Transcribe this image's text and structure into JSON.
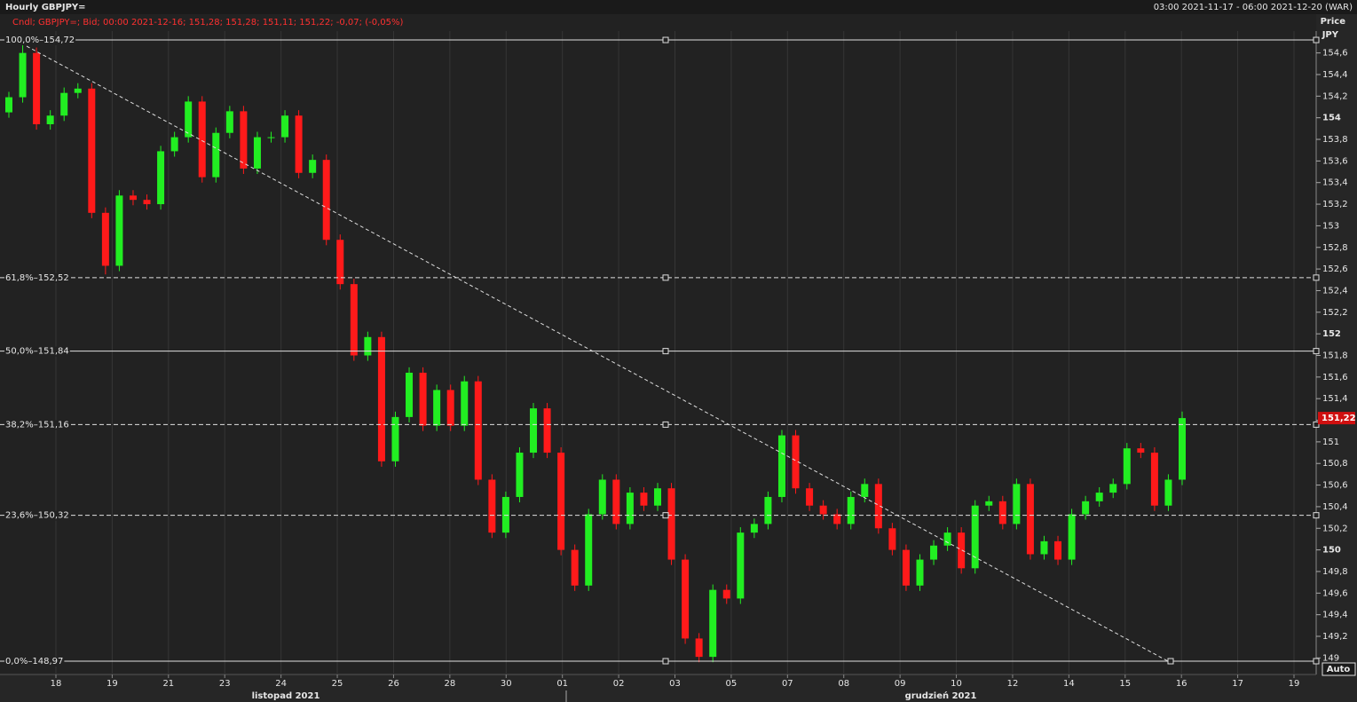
{
  "chart_data": {
    "type": "candlestick",
    "title": "Hourly GBPJPY=",
    "date_range": "03:00 2021-11-17 - 06:00 2021-12-20 (WAR)",
    "legend": "Cndl; GBPJPY=; Bid; 00:00 2021-12-16; 151,28; 151,28; 151,11; 151,22; -0,07; (-0,05%)",
    "axis_title": "Price",
    "axis_unit": "JPY",
    "button": "Auto",
    "categories": [
      "18",
      "19",
      "21",
      "23",
      "24",
      "25",
      "26",
      "28",
      "30",
      "01",
      "02",
      "03",
      "05",
      "07",
      "08",
      "09",
      "10",
      "12",
      "14",
      "15",
      "16",
      "17",
      "19"
    ],
    "month_labels": [
      "listopad 2021",
      "grudzień 2021"
    ],
    "up_color": "#22ee22",
    "down_color": "#ff1a1a",
    "ylim": [
      148.85,
      154.8
    ],
    "yticks": [
      149,
      {
        "value": 149.2,
        "label": "149,2"
      },
      {
        "value": 149.4,
        "label": "149,4"
      },
      {
        "value": 149.6,
        "label": "149,6"
      },
      {
        "value": 149.8,
        "label": "149,8"
      },
      150,
      {
        "value": 150.2,
        "label": "150,2"
      },
      {
        "value": 150.4,
        "label": "150,4"
      },
      {
        "value": 150.6,
        "label": "150,6"
      },
      {
        "value": 150.8,
        "label": "150,8"
      },
      151,
      {
        "value": 151.2,
        "label": "151,2"
      },
      {
        "value": 151.4,
        "label": "151,4"
      },
      {
        "value": 151.6,
        "label": "151,6"
      },
      {
        "value": 151.8,
        "label": "151,8"
      },
      152,
      {
        "value": 152.2,
        "label": "152,2"
      },
      {
        "value": 152.4,
        "label": "152,4"
      },
      {
        "value": 152.6,
        "label": "152,6"
      },
      {
        "value": 152.8,
        "label": "152,8"
      },
      153,
      {
        "value": 153.2,
        "label": "153,2"
      },
      {
        "value": 153.4,
        "label": "153,4"
      },
      {
        "value": 153.6,
        "label": "153,6"
      },
      {
        "value": 153.8,
        "label": "153,8"
      },
      154,
      {
        "value": 154.2,
        "label": "154,2"
      },
      {
        "value": 154.4,
        "label": "154,4"
      },
      {
        "value": 154.6,
        "label": "154,6"
      }
    ],
    "fib_levels": [
      {
        "value": 154.72,
        "label": "100,0%–154,72",
        "style": "solid"
      },
      {
        "value": 152.52,
        "label": "61,8%–152,52",
        "style": "dashed"
      },
      {
        "value": 151.84,
        "label": "50,0%–151,84",
        "style": "solid"
      },
      {
        "value": 151.16,
        "label": "38,2%–151,16",
        "style": "dashed"
      },
      {
        "value": 150.32,
        "label": "23,6%–150,32",
        "style": "dashed"
      },
      {
        "value": 148.97,
        "label": "0,0%–148,97",
        "style": "solid"
      }
    ],
    "last_price": 151.22,
    "last_price_label": "151,22",
    "candles": {
      "open": [
        154.05,
        154.19,
        154.6,
        153.94,
        154.02,
        154.23,
        154.27,
        153.12,
        152.63,
        153.28,
        153.24,
        153.2,
        153.69,
        153.82,
        154.15,
        153.45,
        153.86,
        154.06,
        153.53,
        153.82,
        153.82,
        154.02,
        153.49,
        153.61,
        152.87,
        152.46,
        151.8,
        151.97,
        150.82,
        151.23,
        151.64,
        151.15,
        151.48,
        151.15,
        151.56,
        150.65,
        150.16,
        150.49,
        150.9,
        151.31,
        150.9,
        150.0,
        149.67,
        150.33,
        150.65,
        150.24,
        150.53,
        150.41,
        150.57,
        149.91,
        149.18,
        149.01,
        149.63,
        149.55,
        150.16,
        150.24,
        150.49,
        151.06,
        150.57,
        150.41,
        150.33,
        150.24,
        150.49,
        150.61,
        150.2,
        150.0,
        149.67,
        149.91,
        150.04,
        150.16,
        149.83,
        150.41,
        150.45,
        150.24,
        150.61,
        149.96,
        150.08,
        149.91,
        150.33,
        150.45,
        150.53,
        150.61,
        150.94,
        150.9,
        150.41,
        150.65
      ],
      "high": [
        154.24,
        154.72,
        154.65,
        154.07,
        154.28,
        154.32,
        154.32,
        153.17,
        153.33,
        153.33,
        153.29,
        153.74,
        153.87,
        154.2,
        154.2,
        153.91,
        154.11,
        154.11,
        153.87,
        153.87,
        154.07,
        154.07,
        153.66,
        153.66,
        152.92,
        152.51,
        152.02,
        152.02,
        151.28,
        151.69,
        151.69,
        151.53,
        151.53,
        151.61,
        151.61,
        150.7,
        150.54,
        150.95,
        151.36,
        151.36,
        150.95,
        150.05,
        150.38,
        150.7,
        150.7,
        150.58,
        150.58,
        150.62,
        150.62,
        149.96,
        149.23,
        149.68,
        149.68,
        150.21,
        150.29,
        150.54,
        151.11,
        151.11,
        150.62,
        150.46,
        150.38,
        150.54,
        150.66,
        150.66,
        150.25,
        150.05,
        149.96,
        150.09,
        150.21,
        150.21,
        150.46,
        150.5,
        150.5,
        150.66,
        150.66,
        150.13,
        150.13,
        150.38,
        150.5,
        150.58,
        150.66,
        150.99,
        150.99,
        150.95,
        150.7,
        151.28
      ],
      "low": [
        154.0,
        154.14,
        153.89,
        153.89,
        153.97,
        154.18,
        153.07,
        152.55,
        152.58,
        153.19,
        153.15,
        153.15,
        153.64,
        153.77,
        153.4,
        153.4,
        153.81,
        153.48,
        153.48,
        153.77,
        153.77,
        153.44,
        153.44,
        152.82,
        152.41,
        151.75,
        151.75,
        150.77,
        150.77,
        151.18,
        151.1,
        151.1,
        151.1,
        151.1,
        150.6,
        150.11,
        150.11,
        150.44,
        150.85,
        150.85,
        149.95,
        149.62,
        149.62,
        150.28,
        150.19,
        150.19,
        150.36,
        150.36,
        149.86,
        149.13,
        148.96,
        148.96,
        149.5,
        149.5,
        150.11,
        150.19,
        150.44,
        150.52,
        150.36,
        150.28,
        150.19,
        150.19,
        150.44,
        150.15,
        149.95,
        149.62,
        149.62,
        149.86,
        149.99,
        149.78,
        149.78,
        150.36,
        150.19,
        150.19,
        149.91,
        149.91,
        149.86,
        149.86,
        150.28,
        150.4,
        150.48,
        150.56,
        150.85,
        150.36,
        150.36,
        150.6
      ],
      "close": [
        154.19,
        154.6,
        153.94,
        154.02,
        154.23,
        154.27,
        153.12,
        152.63,
        153.28,
        153.24,
        153.2,
        153.69,
        153.82,
        154.15,
        153.45,
        153.86,
        154.06,
        153.53,
        153.82,
        153.82,
        154.02,
        153.49,
        153.61,
        152.87,
        152.46,
        151.8,
        151.97,
        150.82,
        151.23,
        151.64,
        151.15,
        151.48,
        151.15,
        151.56,
        150.65,
        150.16,
        150.49,
        150.9,
        151.31,
        150.9,
        150.0,
        149.67,
        150.33,
        150.65,
        150.24,
        150.53,
        150.41,
        150.57,
        149.91,
        149.18,
        149.01,
        149.63,
        149.55,
        150.16,
        150.24,
        150.49,
        151.06,
        150.57,
        150.41,
        150.33,
        150.24,
        150.49,
        150.61,
        150.2,
        150.0,
        149.67,
        149.91,
        150.04,
        150.16,
        149.83,
        150.41,
        150.45,
        150.24,
        150.61,
        149.96,
        150.08,
        149.91,
        150.33,
        150.45,
        150.53,
        150.61,
        150.94,
        150.9,
        150.41,
        150.65,
        151.22
      ]
    }
  }
}
